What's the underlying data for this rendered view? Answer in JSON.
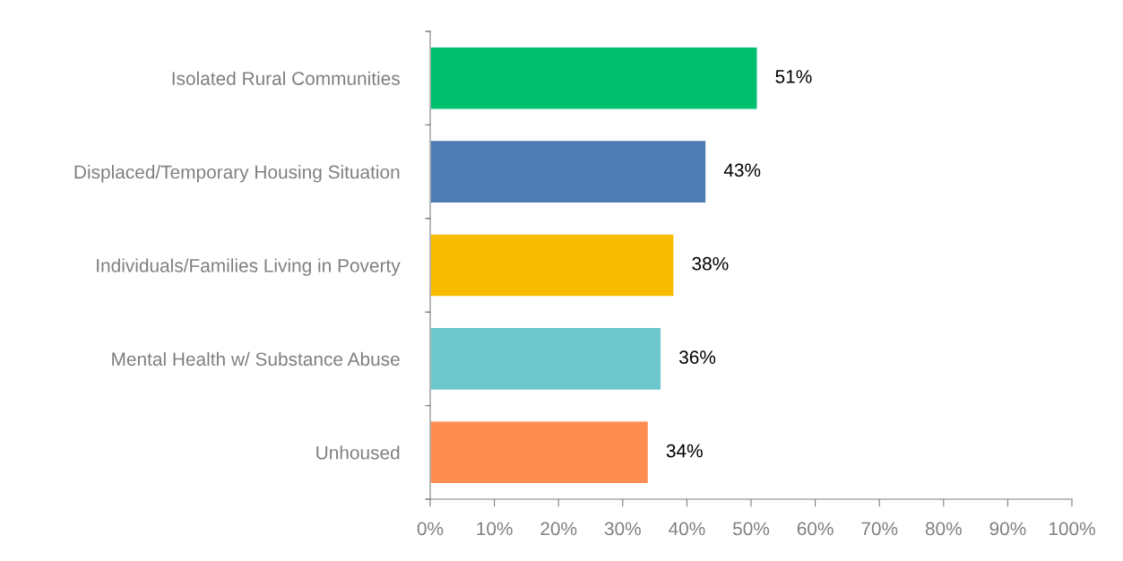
{
  "chart_data": {
    "type": "bar",
    "orientation": "horizontal",
    "categories": [
      "Isolated Rural Communities",
      "Displaced/Temporary Housing Situation",
      "Individuals/Families Living in Poverty",
      "Mental Health w/ Substance Abuse",
      "Unhoused"
    ],
    "values": [
      51,
      43,
      38,
      36,
      34
    ],
    "colors": [
      "#00c070",
      "#4f7bb5",
      "#f8bd00",
      "#6cc8cc",
      "#ff8c50"
    ],
    "value_labels": [
      "51%",
      "43%",
      "38%",
      "36%",
      "34%"
    ],
    "xlim": [
      0,
      100
    ],
    "xticks": [
      {
        "value": 0,
        "label": "0%"
      },
      {
        "value": 10,
        "label": "10%"
      },
      {
        "value": 20,
        "label": "20%"
      },
      {
        "value": 30,
        "label": "30%"
      },
      {
        "value": 40,
        "label": "40%"
      },
      {
        "value": 50,
        "label": "50%"
      },
      {
        "value": 60,
        "label": "60%"
      },
      {
        "value": 70,
        "label": "70%"
      },
      {
        "value": 80,
        "label": "80%"
      },
      {
        "value": 90,
        "label": "90%"
      },
      {
        "value": 100,
        "label": "100%"
      }
    ],
    "grid": false
  }
}
